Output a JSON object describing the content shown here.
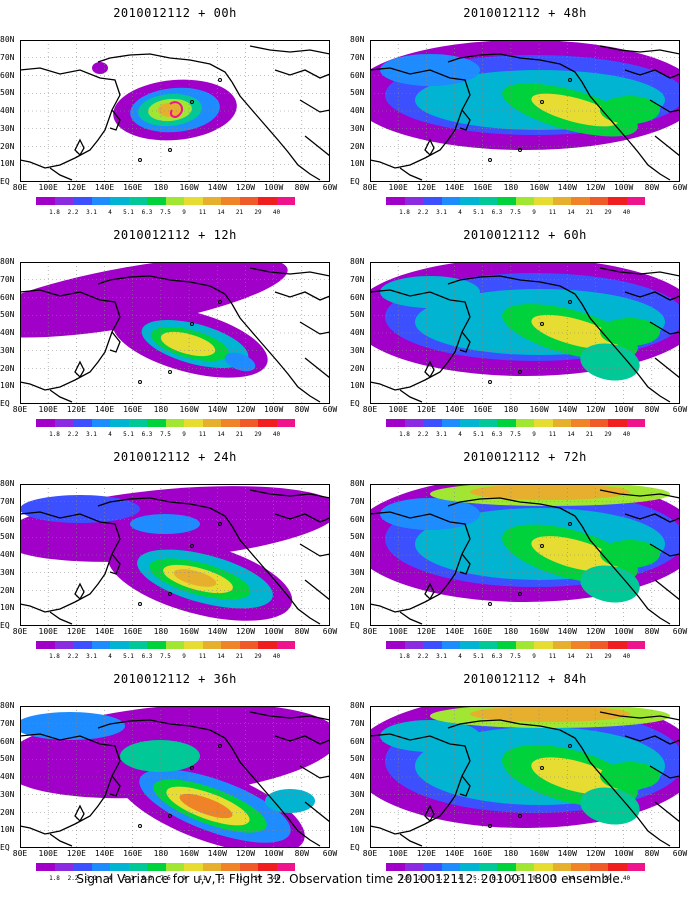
{
  "caption": "Signal Variance for u,v,T. Flight 32. Observation time 2010012112. 2010011800 ensemble.",
  "colorbar": {
    "labels": [
      "1.8",
      "2.2",
      "3.1",
      "4",
      "5.1",
      "6.3",
      "7.5",
      "9",
      "11",
      "14",
      "21",
      "29",
      "40"
    ],
    "colors": [
      "#a000c8",
      "#8a2be2",
      "#3c50ff",
      "#1e8cff",
      "#00b4d2",
      "#00c896",
      "#00d23c",
      "#a0e632",
      "#e6dc32",
      "#e6af2d",
      "#f08228",
      "#f05a28",
      "#f01e1e",
      "#f0148c"
    ]
  },
  "map": {
    "lat_labels": [
      "80N",
      "70N",
      "60N",
      "50N",
      "40N",
      "30N",
      "20N",
      "10N",
      "EQ"
    ],
    "lon_labels": [
      "80E",
      "100E",
      "120E",
      "140E",
      "160E",
      "180",
      "160W",
      "140W",
      "120W",
      "100W",
      "80W",
      "60W"
    ]
  },
  "panels": [
    {
      "title": "2010012112 + 00h",
      "stage": 0
    },
    {
      "title": "2010012112 + 48h",
      "stage": 4
    },
    {
      "title": "2010012112 + 12h",
      "stage": 1
    },
    {
      "title": "2010012112 + 60h",
      "stage": 5
    },
    {
      "title": "2010012112 + 24h",
      "stage": 2
    },
    {
      "title": "2010012112 + 72h",
      "stage": 6
    },
    {
      "title": "2010012112 + 36h",
      "stage": 3
    },
    {
      "title": "2010012112 + 84h",
      "stage": 7
    }
  ]
}
